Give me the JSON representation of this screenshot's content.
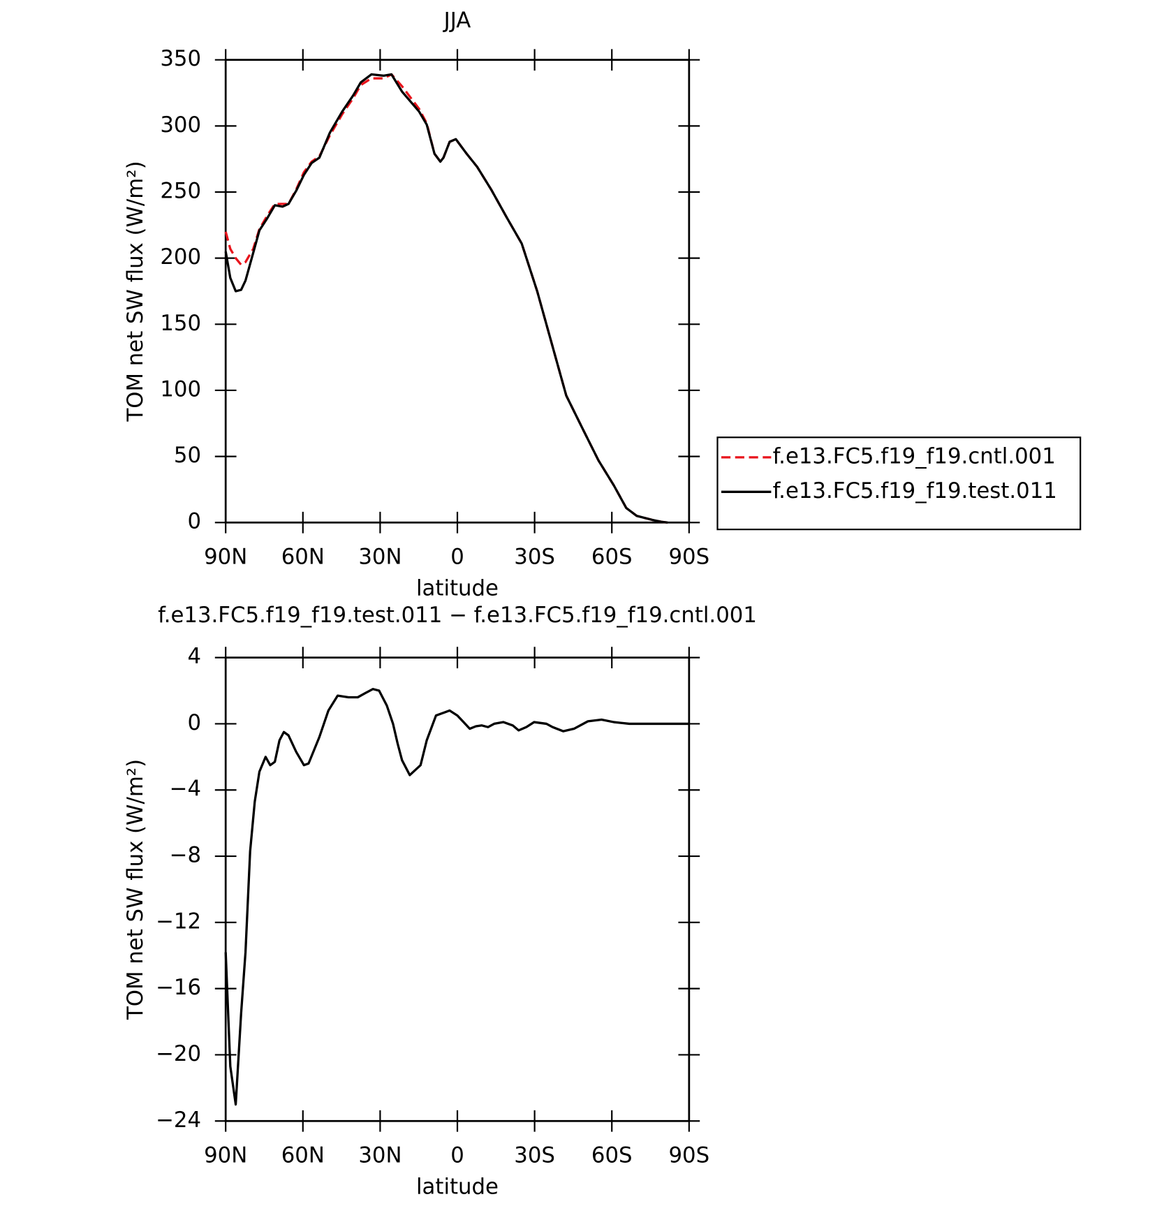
{
  "chart_data": [
    {
      "type": "line",
      "title": "JJA",
      "xlabel": "latitude",
      "ylabel": "TOM net SW flux (W/m²)",
      "x": [
        90,
        88.2,
        86.1,
        84.0,
        82.3,
        79.3,
        76.9,
        73.9,
        70.9,
        67.9,
        65.6,
        62.6,
        59.6,
        56.6,
        53.6,
        49.5,
        44.7,
        40.5,
        37.5,
        33.4,
        28.6,
        25.6,
        21.5,
        14.9,
        11.9,
        8.9,
        6.6,
        5.4,
        3.0,
        0.6,
        -3.6,
        -7.7,
        -13.1,
        -19.1,
        -25.0,
        -31.0,
        -37.0,
        -42.3,
        -48.9,
        -54.8,
        -60.8,
        -65.6,
        -69.7,
        -75.7,
        -79.3,
        -81.7
      ],
      "series": [
        {
          "name": "f.e13.FC5.f19_f19.cntl.001",
          "color": "#e8141c",
          "style": "dashed",
          "values": [
            220,
            207,
            200,
            195,
            197,
            207,
            222,
            232,
            241,
            241,
            241,
            252,
            265,
            273,
            277,
            293,
            309,
            321,
            331,
            336,
            336,
            339,
            330,
            313,
            302,
            279,
            273,
            276,
            288,
            290,
            279,
            269,
            252,
            231,
            211,
            175,
            133,
            96,
            70,
            47,
            28,
            11,
            5,
            2,
            0.5,
            0
          ]
        },
        {
          "name": "f.e13.FC5.f19_f19.test.011",
          "color": "#000000",
          "style": "solid",
          "values": [
            205,
            185,
            175,
            176,
            183,
            204,
            221,
            230,
            240,
            239,
            241,
            251,
            263,
            272,
            276,
            295,
            311,
            323,
            333,
            339,
            338,
            339,
            326,
            311,
            301,
            279,
            273,
            276,
            288,
            290,
            279,
            269,
            252,
            231,
            211,
            175,
            133,
            96,
            70,
            47,
            28,
            11,
            5,
            2,
            0.5,
            0
          ]
        }
      ],
      "xlim": [
        90,
        -90
      ],
      "xticks": [
        {
          "value": 90,
          "label": "90N"
        },
        {
          "value": 60,
          "label": "60N"
        },
        {
          "value": 30,
          "label": "30N"
        },
        0,
        {
          "value": -30,
          "label": "30S"
        },
        {
          "value": -60,
          "label": "60S"
        },
        {
          "value": -90,
          "label": "90S"
        }
      ],
      "ylim": [
        0,
        350
      ],
      "yticks": [
        0,
        50,
        100,
        150,
        200,
        250,
        300,
        350
      ],
      "legend": "outside right"
    },
    {
      "type": "line",
      "title": "f.e13.FC5.f19_f19.test.011 − f.e13.FC5.f19_f19.cntl.001",
      "xlabel": "latitude",
      "ylabel": "TOM net SW flux (W/m²)",
      "x": [
        90,
        88.2,
        86.1,
        84.0,
        82.3,
        80.5,
        78.7,
        76.9,
        74.5,
        72.7,
        70.9,
        69.1,
        67.4,
        65.6,
        62.6,
        59.6,
        57.8,
        53.6,
        50.1,
        46.5,
        42.3,
        38.7,
        35.8,
        32.8,
        30.4,
        27.4,
        25.0,
        23.2,
        21.5,
        18.5,
        14.3,
        11.9,
        8.3,
        3.0,
        0,
        -2.4,
        -4.8,
        -7.2,
        -9.5,
        -11.9,
        -14.3,
        -17.9,
        -21.5,
        -23.8,
        -26.8,
        -29.8,
        -34.6,
        -37.0,
        -41.1,
        -45.3,
        -50.7,
        -56.0,
        -60.8,
        -66.8,
        -78.7,
        -90
      ],
      "series": [
        {
          "color": "#000000",
          "style": "solid",
          "values": [
            -13.8,
            -20.7,
            -23,
            -17.5,
            -13.8,
            -7.7,
            -4.7,
            -2.9,
            -2.0,
            -2.5,
            -2.3,
            -1.0,
            -0.5,
            -0.7,
            -1.7,
            -2.5,
            -2.4,
            -0.8,
            0.8,
            1.7,
            1.6,
            1.6,
            1.85,
            2.1,
            2.0,
            1.1,
            0,
            -1.2,
            -2.2,
            -3.1,
            -2.5,
            -1.0,
            0.5,
            0.8,
            0.5,
            0.1,
            -0.3,
            -0.15,
            -0.1,
            -0.2,
            0,
            0.1,
            -0.1,
            -0.4,
            -0.2,
            0.1,
            0,
            -0.2,
            -0.45,
            -0.3,
            0.15,
            0.25,
            0.1,
            0,
            0,
            0
          ]
        }
      ],
      "xlim": [
        90,
        -90
      ],
      "xticks": [
        {
          "value": 90,
          "label": "90N"
        },
        {
          "value": 60,
          "label": "60N"
        },
        {
          "value": 30,
          "label": "30N"
        },
        0,
        {
          "value": -30,
          "label": "30S"
        },
        {
          "value": -60,
          "label": "60S"
        },
        {
          "value": -90,
          "label": "90S"
        }
      ],
      "ylim": [
        -24,
        4
      ],
      "yticks": [
        {
          "value": -24,
          "label": "−24"
        },
        {
          "value": -20,
          "label": "−20"
        },
        {
          "value": -16,
          "label": "−16"
        },
        {
          "value": -12,
          "label": "−12"
        },
        {
          "value": -8,
          "label": "−8"
        },
        {
          "value": -4,
          "label": "−4"
        },
        0,
        4
      ]
    }
  ]
}
